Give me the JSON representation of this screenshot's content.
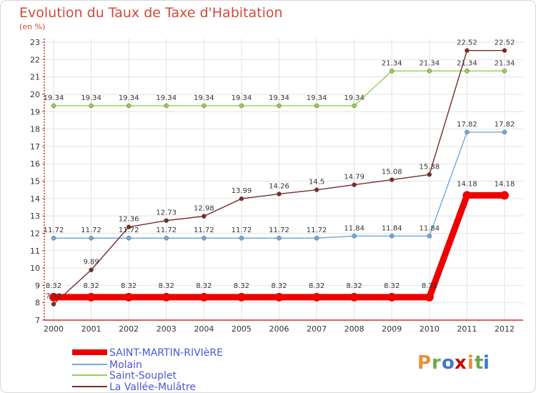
{
  "chart_data": {
    "type": "line",
    "title": "Evolution du Taux de Taxe d'Habitation",
    "subtitle": "(en %)",
    "categories": [
      "2000",
      "2001",
      "2002",
      "2003",
      "2004",
      "2005",
      "2006",
      "2007",
      "2008",
      "2009",
      "2010",
      "2011",
      "2012"
    ],
    "ylim": [
      7,
      23
    ],
    "yticks": [
      7,
      8,
      9,
      10,
      11,
      12,
      13,
      14,
      15,
      16,
      17,
      18,
      19,
      20,
      21,
      22,
      23
    ],
    "grid": true,
    "legend_position": "bottom-left",
    "series": [
      {
        "name": "SAINT-MARTIN-RIVIèRE",
        "color": "#ee0000",
        "values": [
          8.32,
          8.32,
          8.32,
          8.32,
          8.32,
          8.32,
          8.32,
          8.32,
          8.32,
          8.32,
          8.32,
          14.18,
          14.18
        ]
      },
      {
        "name": "Molain",
        "color": "#6fa8dc",
        "values": [
          11.72,
          11.72,
          11.72,
          11.72,
          11.72,
          11.72,
          11.72,
          11.72,
          11.84,
          11.84,
          11.84,
          17.82,
          17.82
        ]
      },
      {
        "name": "Saint-Souplet",
        "color": "#92d050",
        "values": [
          19.34,
          19.34,
          19.34,
          19.34,
          19.34,
          19.34,
          19.34,
          19.34,
          19.34,
          21.34,
          21.34,
          21.34,
          21.34
        ]
      },
      {
        "name": "La Vallée-Mulâtre",
        "color": "#7b2a2a",
        "values": [
          7.92,
          9.89,
          12.36,
          12.73,
          12.98,
          13.99,
          14.26,
          14.5,
          14.79,
          15.08,
          15.38,
          22.52,
          22.52
        ]
      }
    ]
  },
  "brand": {
    "letters": [
      "P",
      "r",
      "o",
      "x",
      "i",
      "t",
      "i"
    ],
    "colors": [
      "#e69138",
      "#6aa84f",
      "#3c78d8",
      "#cc0000",
      "#e69138",
      "#6aa84f",
      "#3c78d8"
    ]
  }
}
